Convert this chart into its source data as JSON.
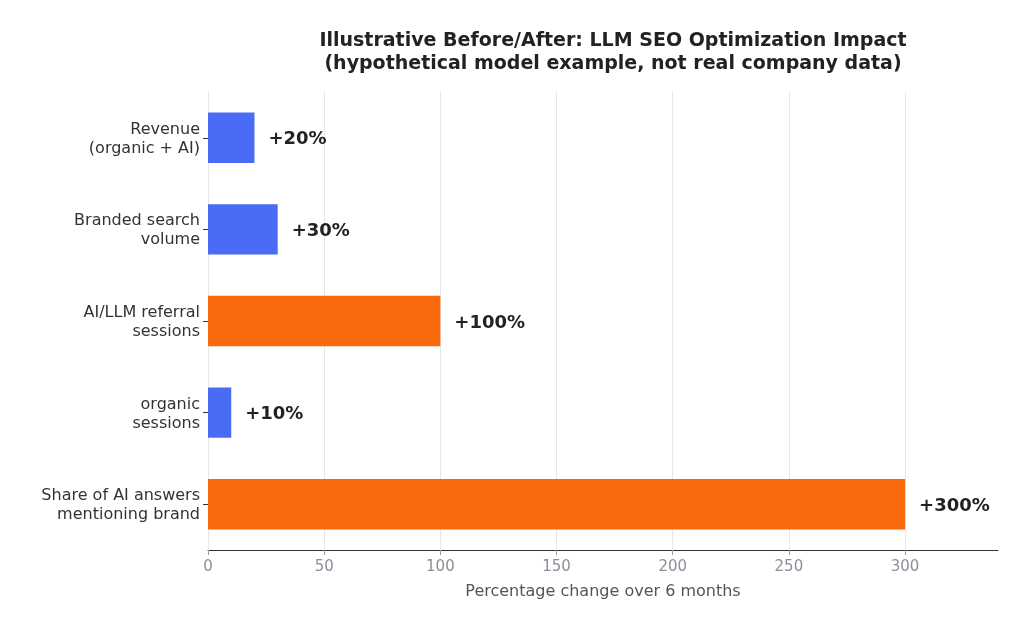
{
  "chart_data": {
    "type": "bar",
    "orientation": "horizontal",
    "title": "Illustrative Before/After: LLM SEO Optimization Impact\n(hypothetical model example, not real company data)",
    "xlabel": "Percentage change over 6 months",
    "categories": [
      "Revenue\n(organic + AI)",
      "Branded search\nvolume",
      "AI/LLM referral\nsessions",
      "organic\nsessions",
      "Share of AI answers\nmentioning brand"
    ],
    "values": [
      20,
      30,
      100,
      10,
      300
    ],
    "colors": [
      "#4a6cf4",
      "#4a6cf4",
      "#f7690a",
      "#4a6cf4",
      "#f7690a"
    ],
    "value_labels": [
      "+20%",
      "+30%",
      "+100%",
      "+10%",
      "+300%"
    ],
    "xlim": [
      0,
      340
    ],
    "xticks": [
      0,
      50,
      100,
      150,
      200,
      250,
      300
    ],
    "grid": "x"
  }
}
